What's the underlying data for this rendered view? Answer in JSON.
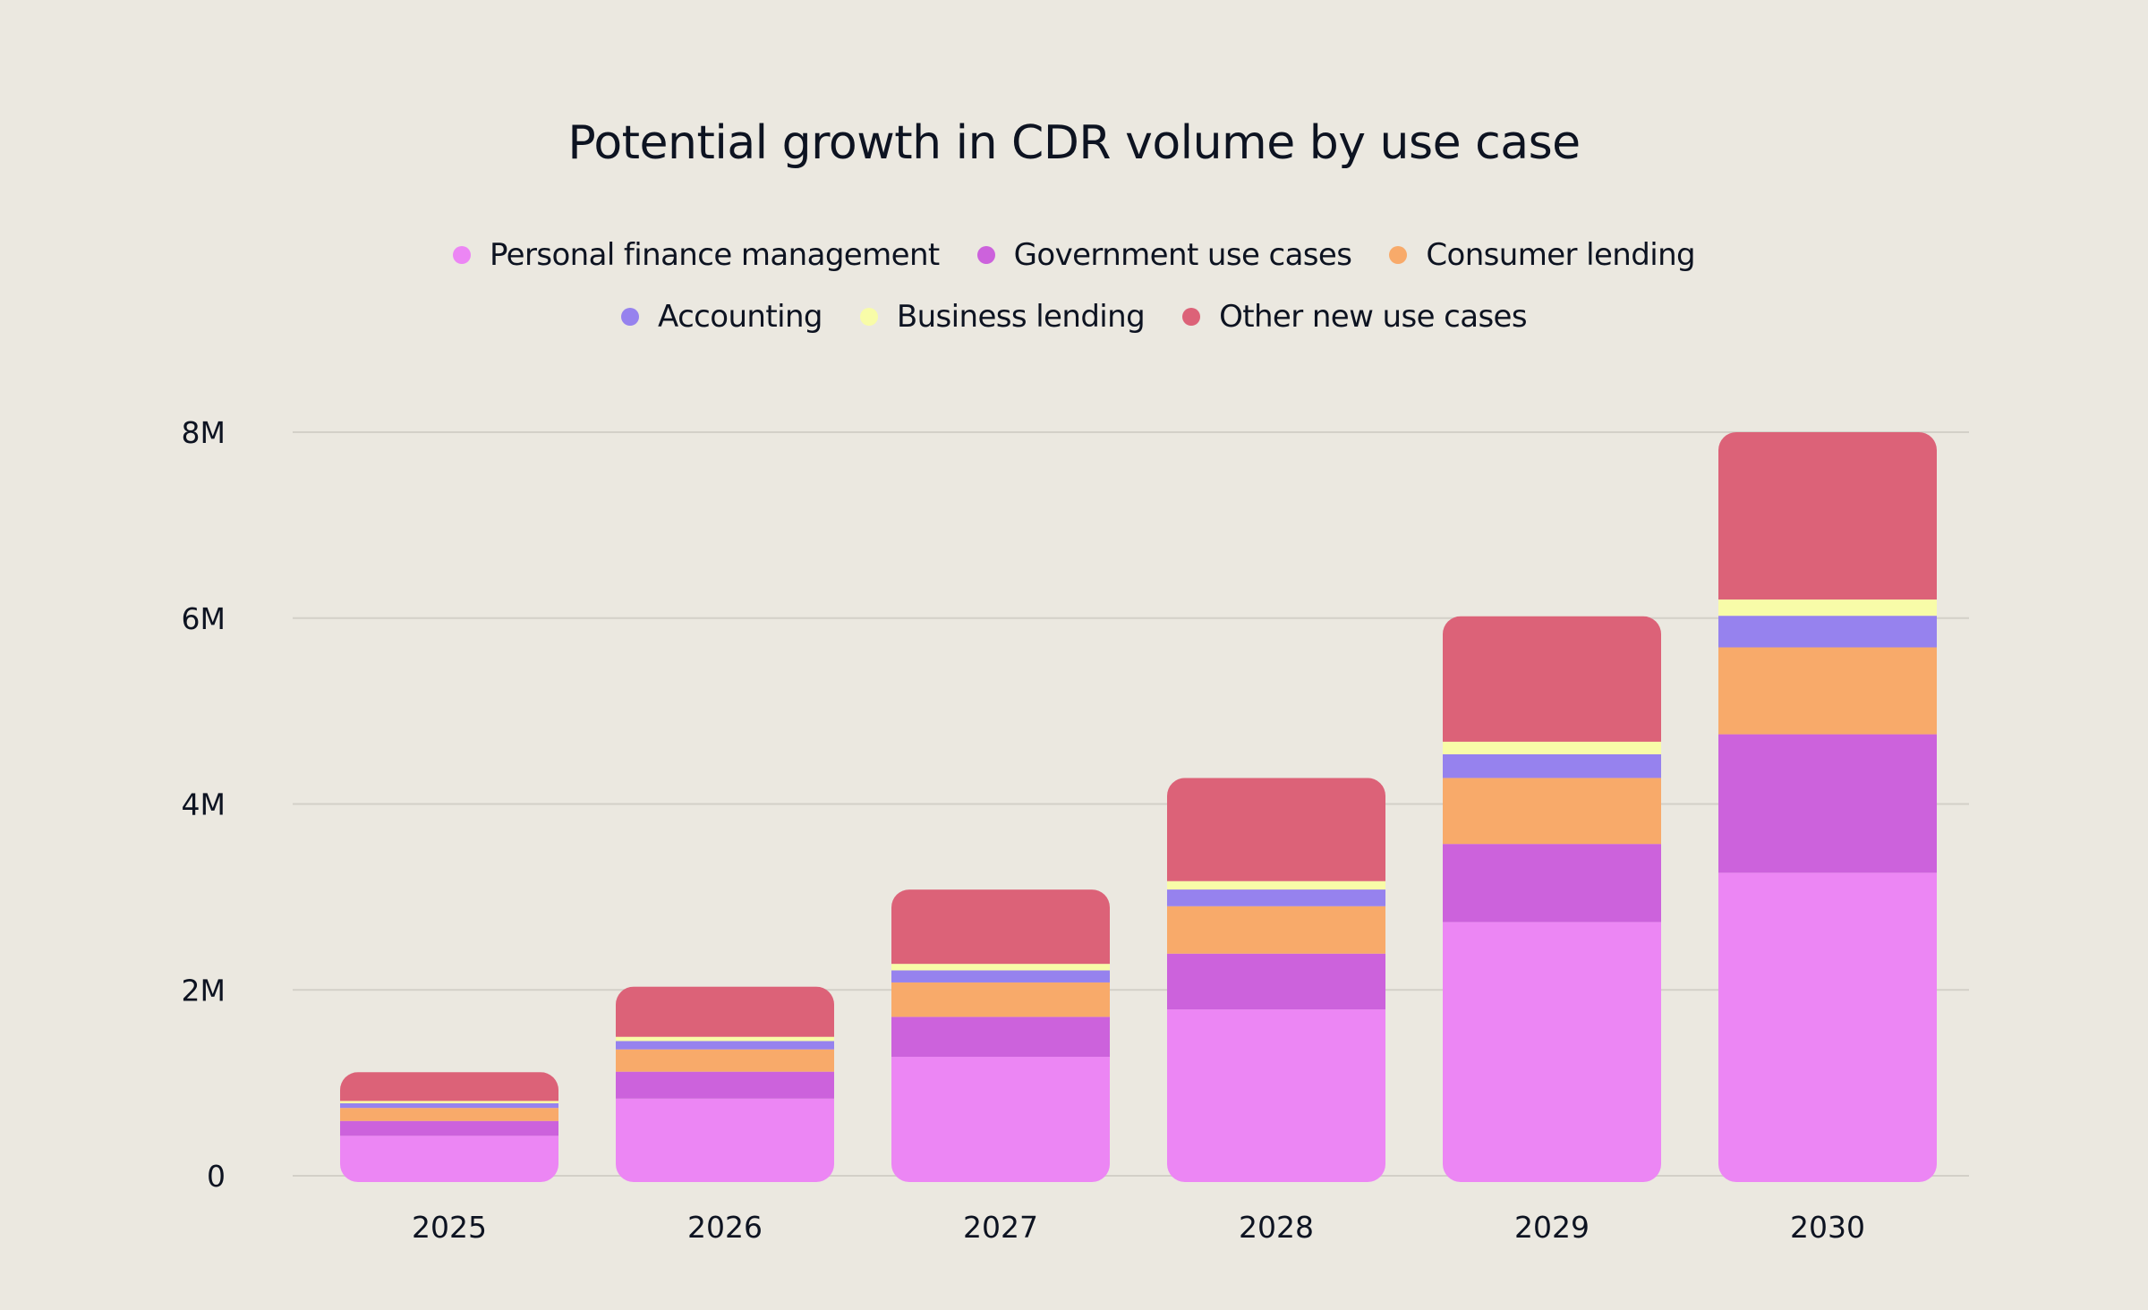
{
  "chart_data": {
    "type": "bar",
    "stacked": true,
    "title": "Potential growth in CDR volume by use case",
    "xlabel": "",
    "ylabel": "",
    "categories": [
      "2025",
      "2026",
      "2027",
      "2028",
      "2029",
      "2030"
    ],
    "ylim": [
      0,
      8000000
    ],
    "yticks": [
      0,
      2000000,
      4000000,
      6000000,
      8000000
    ],
    "ytick_labels": [
      "0",
      "2M",
      "4M",
      "6M",
      "8M"
    ],
    "grid": true,
    "legend_position": "top-center",
    "series": [
      {
        "name": "Personal finance management",
        "color": "#EC86F4",
        "values": [
          430000,
          830000,
          1280000,
          1790000,
          2730000,
          3260000
        ]
      },
      {
        "name": "Government use cases",
        "color": "#CC62DC",
        "values": [
          160000,
          290000,
          430000,
          600000,
          840000,
          1490000
        ]
      },
      {
        "name": "Consumer lending",
        "color": "#F8AA6A",
        "values": [
          140000,
          240000,
          370000,
          510000,
          710000,
          935000
        ]
      },
      {
        "name": "Accounting",
        "color": "#9682EE",
        "values": [
          50000,
          90000,
          130000,
          180000,
          255000,
          340000
        ]
      },
      {
        "name": "Business lending",
        "color": "#F8FCA8",
        "values": [
          25000,
          45000,
          70000,
          90000,
          135000,
          175000
        ]
      },
      {
        "name": "Other new use cases",
        "color": "#DC6278",
        "values": [
          310000,
          540000,
          800000,
          1110000,
          1350000,
          1800000
        ]
      }
    ]
  },
  "legend": {
    "rows": [
      [
        0,
        1,
        2
      ],
      [
        3,
        4,
        5
      ]
    ]
  },
  "colors": {
    "background": "#EBE8E0",
    "text": "#0D1321",
    "gridline": "#D3D0C8"
  }
}
